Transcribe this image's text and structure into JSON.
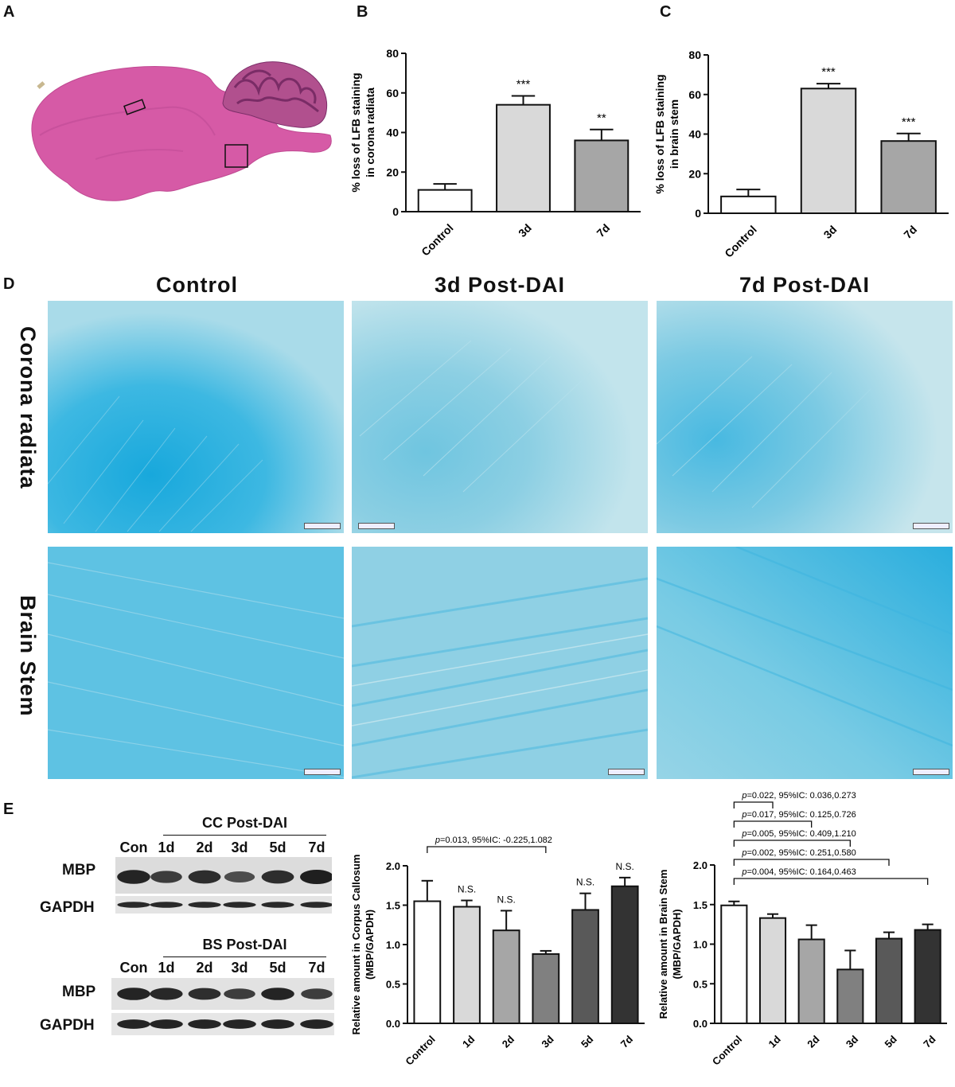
{
  "panels": {
    "A": "A",
    "B": "B",
    "C": "C",
    "D": "D",
    "E": "E"
  },
  "histology": {
    "column_headers": [
      "Control",
      "3d Post-DAI",
      "7d Post-DAI"
    ],
    "row_headers": [
      "Corona radiata",
      "Brain Stem"
    ]
  },
  "chart_data": [
    {
      "id": "B",
      "type": "bar",
      "categories": [
        "Control",
        "3d",
        "7d"
      ],
      "values": [
        11,
        54,
        36
      ],
      "errors": [
        3,
        4.5,
        5.5
      ],
      "significance": [
        "",
        "***",
        "**"
      ],
      "ylabel_lines": [
        "% loss of LFB staining",
        "in corona radiata"
      ],
      "ylim": [
        0,
        80
      ],
      "yticks": [
        0,
        20,
        40,
        60,
        80
      ],
      "colors": [
        "#ffffff",
        "#d9d9d9",
        "#a6a6a6"
      ]
    },
    {
      "id": "C",
      "type": "bar",
      "categories": [
        "Control",
        "3d",
        "7d"
      ],
      "values": [
        8.5,
        63,
        36.5
      ],
      "errors": [
        3.5,
        2.5,
        3.8
      ],
      "significance": [
        "",
        "***",
        "***"
      ],
      "ylabel_lines": [
        "% loss of LFB staining",
        "in brain stem"
      ],
      "ylim": [
        0,
        80
      ],
      "yticks": [
        0,
        20,
        40,
        60,
        80
      ],
      "colors": [
        "#ffffff",
        "#d9d9d9",
        "#a6a6a6"
      ]
    },
    {
      "id": "E-CC",
      "type": "bar",
      "categories": [
        "Control",
        "1d",
        "2d",
        "3d",
        "5d",
        "7d"
      ],
      "values": [
        1.55,
        1.48,
        1.18,
        0.88,
        1.44,
        1.74
      ],
      "errors": [
        0.26,
        0.08,
        0.25,
        0.04,
        0.21,
        0.11
      ],
      "significance": [
        "",
        "N.S.",
        "N.S.",
        "",
        "N.S.",
        "N.S."
      ],
      "ylabel_lines": [
        "Relative amount in Corpus Callosum",
        "(MBP/GAPDH)"
      ],
      "ylim": [
        0,
        2.0
      ],
      "yticks": [
        0.0,
        0.5,
        1.0,
        1.5,
        2.0
      ],
      "tick_labels": [
        "0.0",
        "0.5",
        "1.0",
        "1.5",
        "2.0"
      ],
      "colors": [
        "#ffffff",
        "#d9d9d9",
        "#a6a6a6",
        "#808080",
        "#595959",
        "#333333"
      ],
      "brackets": [
        {
          "from": 0,
          "to": 3,
          "p": "p",
          "text": "=0.013, 95%IC: -0.225,1.082"
        }
      ]
    },
    {
      "id": "E-BS",
      "type": "bar",
      "categories": [
        "Control",
        "1d",
        "2d",
        "3d",
        "5d",
        "7d"
      ],
      "values": [
        1.49,
        1.33,
        1.06,
        0.68,
        1.07,
        1.18
      ],
      "errors": [
        0.05,
        0.05,
        0.18,
        0.24,
        0.08,
        0.07
      ],
      "significance": [
        "",
        "",
        "",
        "",
        "",
        ""
      ],
      "ylabel_lines": [
        "Relative amount in Brain Stem",
        "(MBP/GAPDH)"
      ],
      "ylim": [
        0,
        2.0
      ],
      "yticks": [
        0.0,
        0.5,
        1.0,
        1.5,
        2.0
      ],
      "tick_labels": [
        "0.0",
        "0.5",
        "1.0",
        "1.5",
        "2.0"
      ],
      "colors": [
        "#ffffff",
        "#d9d9d9",
        "#a6a6a6",
        "#808080",
        "#595959",
        "#333333"
      ],
      "brackets": [
        {
          "from": 0,
          "to": 5,
          "p": "p",
          "text": "=0.004, 95%IC: 0.164,0.463"
        },
        {
          "from": 0,
          "to": 4,
          "p": "p",
          "text": "=0.002, 95%IC: 0.251,0.580"
        },
        {
          "from": 0,
          "to": 3,
          "p": "p",
          "text": "=0.005, 95%IC: 0.409,1.210"
        },
        {
          "from": 0,
          "to": 2,
          "p": "p",
          "text": "=0.017, 95%IC: 0.125,0.726"
        },
        {
          "from": 0,
          "to": 1,
          "p": "p",
          "text": "=0.022, 95%IC: 0.036,0.273"
        }
      ]
    }
  ],
  "blots": {
    "cc": {
      "title": "CC Post-DAI",
      "lanes": [
        "Con",
        "1d",
        "2d",
        "3d",
        "5d",
        "7d"
      ],
      "rows": [
        "MBP",
        "GAPDH"
      ],
      "mbp_intensity": [
        0.95,
        0.7,
        0.85,
        0.55,
        0.85,
        1.0
      ]
    },
    "bs": {
      "title": "BS Post-DAI",
      "lanes": [
        "Con",
        "1d",
        "2d",
        "3d",
        "5d",
        "7d"
      ],
      "rows": [
        "MBP",
        "GAPDH"
      ],
      "mbp_intensity": [
        0.95,
        0.9,
        0.85,
        0.7,
        0.95,
        0.7
      ]
    }
  }
}
